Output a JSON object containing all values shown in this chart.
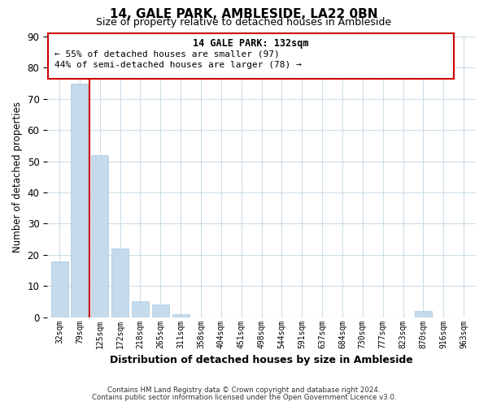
{
  "title": "14, GALE PARK, AMBLESIDE, LA22 0BN",
  "subtitle": "Size of property relative to detached houses in Ambleside",
  "xlabel": "Distribution of detached houses by size in Ambleside",
  "ylabel": "Number of detached properties",
  "bin_labels": [
    "32sqm",
    "79sqm",
    "125sqm",
    "172sqm",
    "218sqm",
    "265sqm",
    "311sqm",
    "358sqm",
    "404sqm",
    "451sqm",
    "498sqm",
    "544sqm",
    "591sqm",
    "637sqm",
    "684sqm",
    "730sqm",
    "777sqm",
    "823sqm",
    "870sqm",
    "916sqm",
    "963sqm"
  ],
  "bar_values": [
    18,
    75,
    52,
    22,
    5,
    4,
    1,
    0,
    0,
    0,
    0,
    0,
    0,
    0,
    0,
    0,
    0,
    0,
    2,
    0,
    0
  ],
  "bar_color": "#c5daea",
  "bar_edge_color": "#a8c8e0",
  "highlight_line_color": "#cc0000",
  "ylim": [
    0,
    90
  ],
  "yticks": [
    0,
    10,
    20,
    30,
    40,
    50,
    60,
    70,
    80,
    90
  ],
  "annotation_title": "14 GALE PARK: 132sqm",
  "annotation_line1": "← 55% of detached houses are smaller (97)",
  "annotation_line2": "44% of semi-detached houses are larger (78) →",
  "footnote1": "Contains HM Land Registry data © Crown copyright and database right 2024.",
  "footnote2": "Contains public sector information licensed under the Open Government Licence v3.0.",
  "background_color": "#ffffff",
  "grid_color": "#ccdde8"
}
